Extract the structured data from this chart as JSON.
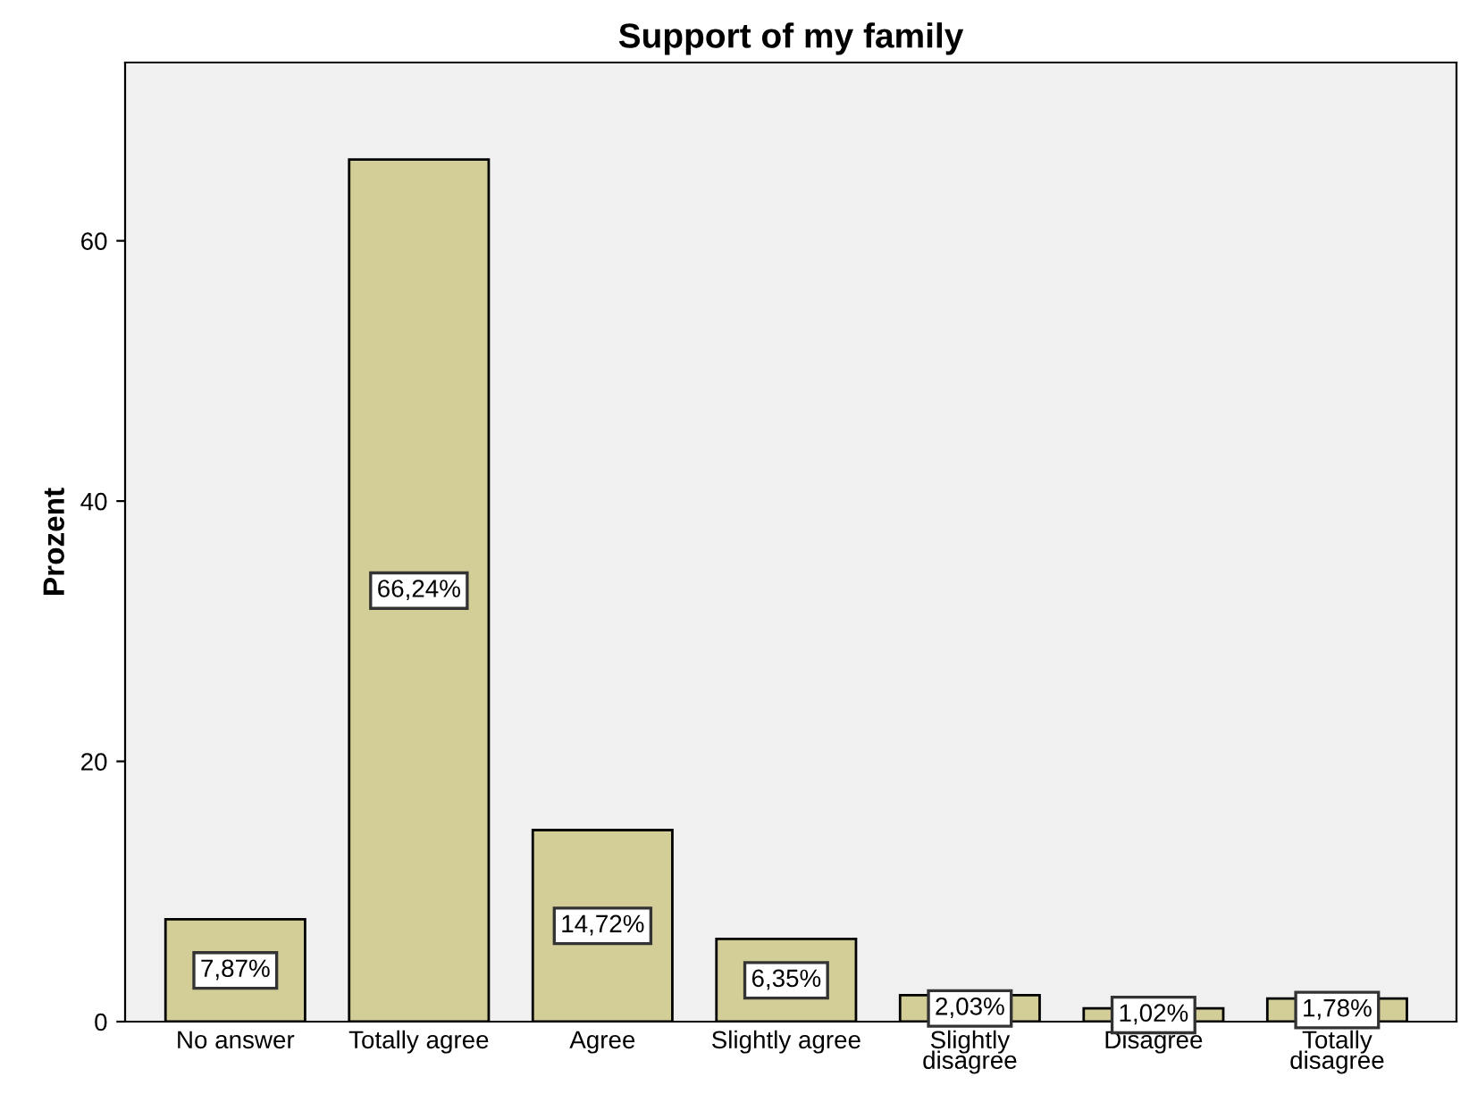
{
  "chart_data": {
    "type": "bar",
    "title": "Support of my family",
    "ylabel": "Prozent",
    "categories": [
      "No answer",
      "Totally agree",
      "Agree",
      "Slightly agree",
      "Slightly\ndisagree",
      "Disagree",
      "Totally\ndisagree"
    ],
    "values": [
      7.87,
      66.24,
      14.72,
      6.35,
      2.03,
      1.02,
      1.78
    ],
    "value_labels": [
      "7,87%",
      "66,24%",
      "14,72%",
      "6,35%",
      "2,03%",
      "1,02%",
      "1,78%"
    ],
    "color": "#d3ce97",
    "ylim": [
      0,
      73.7
    ],
    "yticks": [
      0,
      20,
      40,
      60
    ],
    "grid": false,
    "legend": false
  }
}
